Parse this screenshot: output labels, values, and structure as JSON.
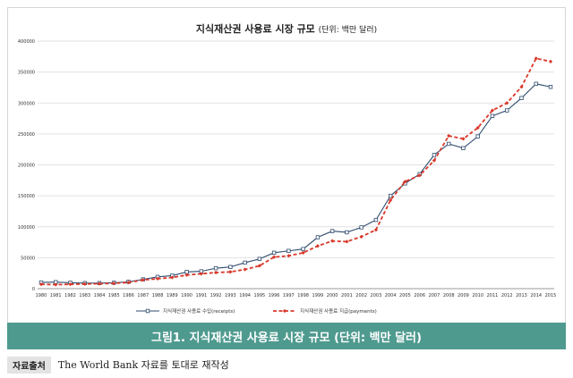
{
  "chart_data": {
    "type": "line",
    "title": "지식재산권 사용료 시장 규모",
    "subtitle": "(단위: 백만 달러)",
    "x": [
      1980,
      1981,
      1982,
      1983,
      1984,
      1985,
      1986,
      1987,
      1988,
      1989,
      1990,
      1991,
      1992,
      1993,
      1994,
      1995,
      1996,
      1997,
      1998,
      1999,
      2000,
      2001,
      2002,
      2003,
      2004,
      2005,
      2006,
      2007,
      2008,
      2009,
      2010,
      2011,
      2012,
      2013,
      2014,
      2015
    ],
    "ylim": [
      0,
      400000
    ],
    "yticks": [
      0,
      50000,
      100000,
      150000,
      200000,
      250000,
      300000,
      350000,
      400000
    ],
    "ytick_labels": [
      "0",
      "50000",
      "100000",
      "150000",
      "200000",
      "250000",
      "300000",
      "350000",
      "400000"
    ],
    "grid": "horizontal",
    "legend_position": "bottom",
    "series": [
      {
        "name": "지식재산권 사용료 수입(receipts)",
        "color": "#2f4a6d",
        "style": "solid-square",
        "values": [
          10000,
          10500,
          9500,
          9000,
          9000,
          9500,
          11000,
          15000,
          19000,
          21000,
          27000,
          28000,
          33000,
          35000,
          42000,
          48000,
          58000,
          61000,
          64000,
          83000,
          93000,
          91000,
          99000,
          111000,
          150000,
          170000,
          185000,
          216000,
          234000,
          227000,
          246000,
          279000,
          288000,
          308000,
          331000,
          326000
        ]
      },
      {
        "name": "지식재산권 사용료 지급(payments)",
        "color": "#d9382a",
        "style": "dashed-diamond",
        "values": [
          7000,
          6500,
          7000,
          7500,
          8000,
          8500,
          10000,
          14000,
          16000,
          18000,
          22000,
          24000,
          26000,
          27000,
          31000,
          37000,
          51000,
          53000,
          58000,
          69000,
          77000,
          76000,
          84000,
          95000,
          143000,
          173000,
          183000,
          207000,
          247000,
          242000,
          260000,
          288000,
          300000,
          326000,
          372000,
          367000
        ]
      }
    ]
  },
  "caption": "그림1. 지식재산권 사용료 시장 규모 (단위: 백만 달러)",
  "source": {
    "label": "자료출처",
    "text": "The World Bank 자료를 토대로 재작성"
  }
}
